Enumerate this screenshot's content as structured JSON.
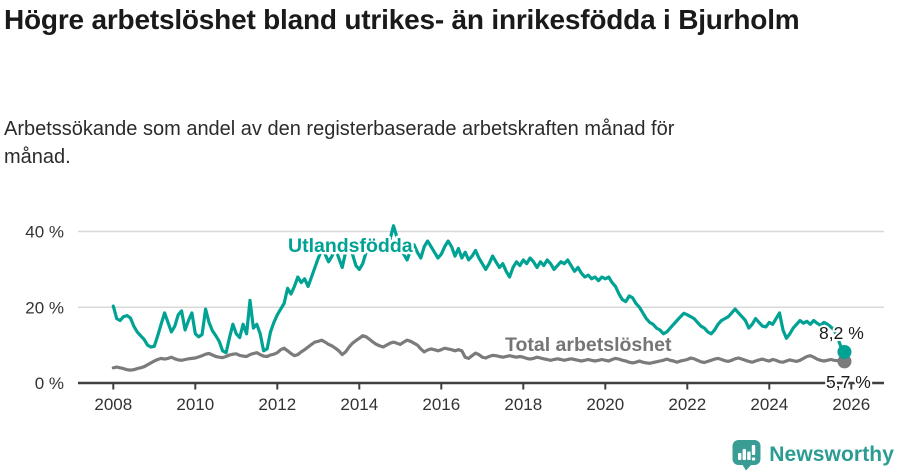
{
  "header": {
    "title": "Högre arbetslöshet bland utrikes- än inrikesfödda i Bjurholm",
    "subtitle": "Arbetssökande som andel av den registerbaserade arbetskraften månad för månad."
  },
  "footer": {
    "brand": "Newsworthy"
  },
  "colors": {
    "accent_teal": "#00a294",
    "series_gray": "#7b7b7b",
    "series_label_gray": "#757575",
    "grid": "#d9d9d9",
    "axis": "#3f3f3f",
    "text_dark": "#1a1a1a",
    "logo_teal": "#3a9d95",
    "logo_text_teal": "#2b9c93"
  },
  "chart_data": {
    "type": "line",
    "title": "Högre arbetslöshet bland utrikes- än inrikesfödda i Bjurholm",
    "subtitle": "Arbetssökande som andel av den registerbaserade arbetskraften månad för månad.",
    "unit": "%",
    "x_period_start": "2008-01",
    "x_period_end": "2025-11",
    "x_tick_labels": [
      "2008",
      "2010",
      "2012",
      "2014",
      "2016",
      "2018",
      "2020",
      "2022",
      "2024",
      "2026"
    ],
    "y_ticks": [
      0,
      20,
      40
    ],
    "y_tick_labels": [
      "0 %",
      "20 %",
      "40 %"
    ],
    "ylim": [
      0,
      44
    ],
    "grid": true,
    "legend_position": "inline-labels",
    "series": [
      {
        "name": "Utlandsfödda",
        "color": "#00a294",
        "end_label": "8,2 %",
        "end_value": 8.2,
        "values": [
          20.3,
          17.0,
          16.5,
          17.5,
          17.8,
          17.2,
          15.0,
          13.5,
          12.5,
          11.5,
          10.0,
          9.5,
          9.7,
          12.5,
          15.5,
          18.5,
          16.0,
          13.5,
          15.0,
          18.0,
          19.0,
          14.0,
          16.5,
          18.5,
          13.0,
          12.2,
          12.8,
          19.5,
          16.0,
          13.8,
          12.5,
          11.0,
          8.5,
          8.0,
          12.0,
          15.5,
          13.0,
          12.0,
          15.5,
          13.0,
          21.8,
          14.5,
          15.5,
          13.0,
          8.5,
          9.0,
          13.5,
          16.0,
          18.0,
          19.5,
          21.0,
          25.0,
          23.5,
          25.5,
          28.0,
          26.5,
          27.5,
          25.5,
          28.0,
          30.5,
          33.0,
          35.0,
          34.0,
          32.0,
          33.5,
          35.5,
          33.0,
          30.5,
          34.5,
          36.0,
          34.0,
          31.0,
          30.0,
          31.5,
          34.5,
          36.5,
          37.5,
          36.0,
          37.0,
          35.5,
          36.5,
          38.0,
          41.5,
          38.5,
          36.5,
          34.0,
          32.5,
          35.0,
          36.5,
          34.5,
          33.0,
          36.0,
          37.5,
          36.0,
          34.5,
          33.0,
          34.0,
          36.0,
          37.5,
          36.0,
          33.5,
          35.5,
          33.0,
          34.5,
          32.5,
          33.5,
          35.0,
          33.0,
          31.5,
          30.0,
          31.5,
          33.5,
          32.0,
          30.5,
          31.5,
          29.5,
          28.0,
          30.5,
          32.0,
          31.0,
          32.5,
          31.5,
          33.0,
          32.0,
          30.5,
          32.0,
          31.0,
          32.5,
          31.5,
          30.0,
          31.0,
          32.0,
          31.5,
          32.5,
          31.0,
          29.5,
          30.5,
          29.0,
          28.0,
          28.5,
          27.5,
          28.0,
          27.0,
          28.0,
          27.5,
          28.0,
          26.5,
          25.5,
          23.5,
          22.0,
          21.5,
          23.0,
          22.5,
          21.0,
          20.0,
          18.5,
          17.0,
          16.0,
          15.5,
          14.5,
          14.0,
          13.0,
          13.5,
          14.5,
          15.5,
          16.5,
          17.5,
          18.4,
          18.0,
          17.5,
          17.0,
          16.0,
          15.0,
          14.5,
          13.5,
          13.0,
          14.0,
          15.5,
          16.5,
          17.0,
          17.5,
          18.5,
          19.5,
          18.5,
          17.5,
          16.5,
          14.5,
          15.5,
          17.0,
          16.0,
          15.0,
          14.8,
          16.0,
          15.5,
          17.0,
          18.5,
          14.0,
          11.8,
          13.0,
          14.5,
          15.5,
          16.5,
          15.8,
          16.3,
          15.5,
          16.5,
          15.8,
          15.2,
          16.0,
          15.5,
          14.8,
          14.0,
          12.0,
          9.5,
          8.2
        ]
      },
      {
        "name": "Total arbetslöshet",
        "color": "#7b7b7b",
        "end_label": "5,7 %",
        "end_value": 5.7,
        "values": [
          4.0,
          4.2,
          4.0,
          3.8,
          3.5,
          3.4,
          3.5,
          3.8,
          4.0,
          4.3,
          4.8,
          5.3,
          5.8,
          6.2,
          6.5,
          6.3,
          6.5,
          6.8,
          6.4,
          6.1,
          6.0,
          6.2,
          6.4,
          6.5,
          6.6,
          6.9,
          7.2,
          7.6,
          7.8,
          7.4,
          7.0,
          6.8,
          6.7,
          7.0,
          7.4,
          7.6,
          7.7,
          7.3,
          7.1,
          7.0,
          7.5,
          7.8,
          8.0,
          7.5,
          7.1,
          7.0,
          7.4,
          7.6,
          8.0,
          8.8,
          9.2,
          8.5,
          7.8,
          7.2,
          7.5,
          8.2,
          8.8,
          9.5,
          10.2,
          10.8,
          11.0,
          11.3,
          10.8,
          10.2,
          9.8,
          9.2,
          8.5,
          7.5,
          8.2,
          9.5,
          10.5,
          11.2,
          11.8,
          12.5,
          12.2,
          11.5,
          10.8,
          10.2,
          9.8,
          9.5,
          10.0,
          10.5,
          10.8,
          10.5,
          10.2,
          10.8,
          11.3,
          11.0,
          10.5,
          10.0,
          9.0,
          8.2,
          8.7,
          9.0,
          8.8,
          8.5,
          8.8,
          9.2,
          9.0,
          8.8,
          8.5,
          8.8,
          8.5,
          6.8,
          6.5,
          7.2,
          7.9,
          7.5,
          6.8,
          6.6,
          7.0,
          7.3,
          7.2,
          7.0,
          6.8,
          7.0,
          7.2,
          7.0,
          6.8,
          7.0,
          6.8,
          6.5,
          6.3,
          6.5,
          6.8,
          6.6,
          6.4,
          6.2,
          6.0,
          6.2,
          6.4,
          6.2,
          6.0,
          6.2,
          6.4,
          6.2,
          6.0,
          5.8,
          6.0,
          6.2,
          6.0,
          5.8,
          6.0,
          6.2,
          6.0,
          5.8,
          6.2,
          6.5,
          6.3,
          6.0,
          5.8,
          5.5,
          5.3,
          5.5,
          5.8,
          5.5,
          5.3,
          5.2,
          5.4,
          5.6,
          5.8,
          6.0,
          6.3,
          6.0,
          5.8,
          5.5,
          5.8,
          6.0,
          6.2,
          6.6,
          6.4,
          6.0,
          5.6,
          5.4,
          5.7,
          6.0,
          6.3,
          6.5,
          6.2,
          5.9,
          5.7,
          6.0,
          6.4,
          6.6,
          6.3,
          6.0,
          5.7,
          5.5,
          5.8,
          6.1,
          6.3,
          6.0,
          5.8,
          6.2,
          6.0,
          5.6,
          5.5,
          5.8,
          6.1,
          5.9,
          5.7,
          6.0,
          6.5,
          7.0,
          7.2,
          6.8,
          6.3,
          6.0,
          5.8,
          6.0,
          6.2,
          6.0,
          5.9,
          5.8,
          5.7
        ]
      }
    ]
  }
}
